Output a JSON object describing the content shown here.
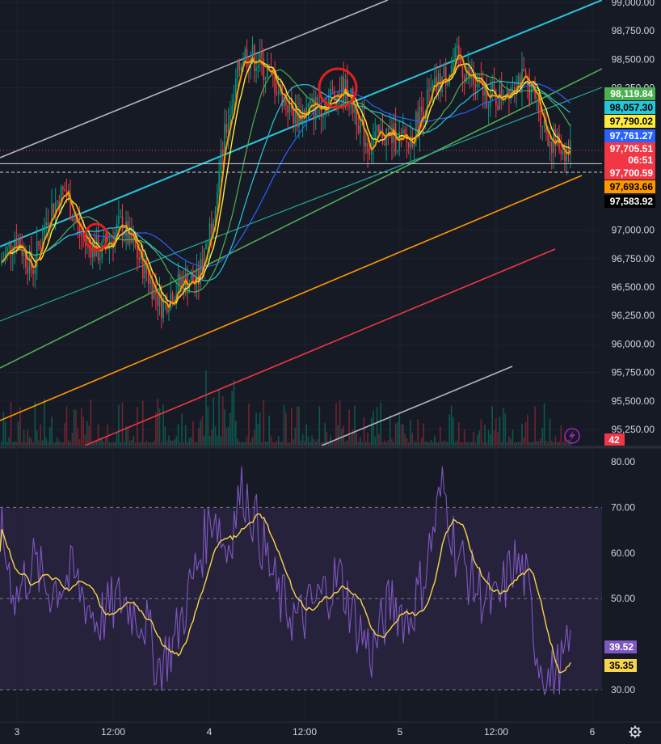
{
  "chart_data": [
    {
      "type": "candlestick",
      "title": "",
      "ylim": [
        95150,
        99000
      ],
      "y_ticks": [
        "99,000.00",
        "98,750.00",
        "98,500.00",
        "98,250.00",
        "97,000.00",
        "96,750.00",
        "96,500.00",
        "96,250.00",
        "96,000.00",
        "95,750.00",
        "95,500.00",
        "95,250.00"
      ],
      "x_ticks": [
        "3",
        "12:00",
        "4",
        "12:00",
        "5",
        "12:00",
        "6"
      ],
      "price_tags": [
        {
          "value": "98,119.84",
          "bg": "#4caf50",
          "fg": "#ffffff"
        },
        {
          "value": "98,057.30",
          "bg": "#26c6da",
          "fg": "#000000"
        },
        {
          "value": "97,790.02",
          "bg": "#ffeb3b",
          "fg": "#000000"
        },
        {
          "value": "97,761.27",
          "bg": "#2962ff",
          "fg": "#ffffff"
        },
        {
          "value": "97,705.51",
          "bg": "#f23645",
          "fg": "#ffffff"
        },
        {
          "value": "06:51",
          "bg": "#f23645",
          "fg": "#ffffff"
        },
        {
          "value": "97,700.59",
          "bg": "#f23645",
          "fg": "#ffffff"
        },
        {
          "value": "97,693.66",
          "bg": "#ff9800",
          "fg": "#000000"
        },
        {
          "value": "97,583.92",
          "bg": "#000000",
          "fg": "#ffffff"
        }
      ],
      "volume_tag": {
        "value": "42",
        "bg": "#f23645",
        "fg": "#ffffff"
      },
      "channel_lines": [
        {
          "name": "",
          "color": "#b2b5be"
        },
        {
          "name": "",
          "color": "#26c6da"
        },
        {
          "name": "",
          "color": "#4caf50"
        },
        {
          "name": "",
          "color": "#ff9800"
        },
        {
          "name": "",
          "color": "#f23645"
        },
        {
          "name": "",
          "color": "#b2b5be"
        }
      ],
      "moving_averages": [
        {
          "color": "#ff9800",
          "last": 97693.66
        },
        {
          "color": "#ffeb3b",
          "last": 97790.02
        },
        {
          "color": "#4caf50",
          "last": 98119.84
        },
        {
          "color": "#26c6da",
          "last": 98057.3
        },
        {
          "color": "#2962ff",
          "last": 97761.27
        }
      ],
      "highlight_circles": 2,
      "horizontal_level": 97583.92,
      "current_price": 97700.59
    },
    {
      "type": "line",
      "title": "",
      "ylim": [
        28,
        82
      ],
      "y_ticks": [
        "80.00",
        "70.00",
        "60.00",
        "50.00",
        "30.00"
      ],
      "bands": [
        30,
        50,
        70
      ],
      "series": [
        {
          "name": "",
          "color": "#7e57c2",
          "last": "39.52"
        },
        {
          "name": "",
          "color": "#f7d44c",
          "last": "35.35"
        }
      ]
    }
  ],
  "icons": {
    "flash": "lightning-icon",
    "settings": "gear-icon"
  }
}
